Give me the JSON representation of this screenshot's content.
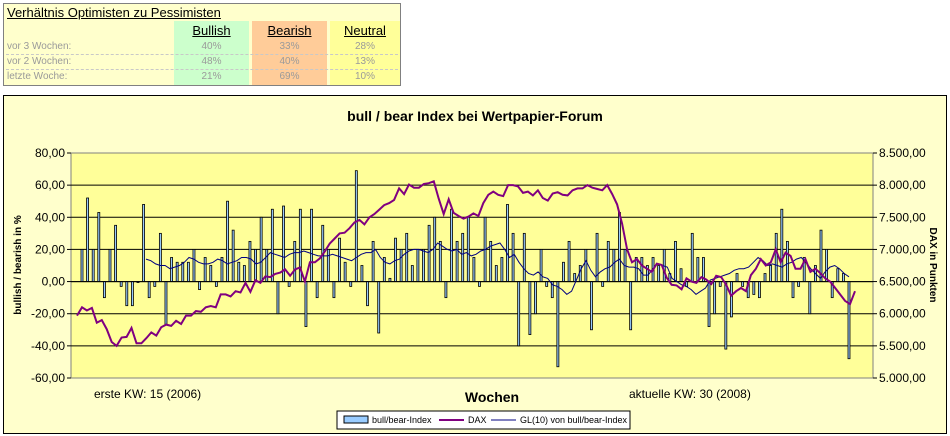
{
  "summary": {
    "title": "Verhältnis Optimisten zu Pessimisten",
    "headers": [
      "Bullish",
      "Bearish",
      "Neutral"
    ],
    "header_colors": [
      "#ccffcc",
      "#ffcc99",
      "#ffff99"
    ],
    "rows": [
      {
        "label": "vor 3 Wochen:",
        "values": [
          "40%",
          "33%",
          "28%"
        ]
      },
      {
        "label": "vor 2 Wochen:",
        "values": [
          "48%",
          "40%",
          "13%"
        ]
      },
      {
        "label": "letzte Woche:",
        "values": [
          "21%",
          "69%",
          "10%"
        ]
      }
    ]
  },
  "chart_data": {
    "type": "bar",
    "title": "bull / bear Index bei Wertpapier-Forum",
    "xlabel": "Wochen",
    "ylabel": "bullish / bearish in %",
    "y2label": "DAX in Punkten",
    "ylim": [
      -60,
      80
    ],
    "y2lim": [
      5000,
      8500
    ],
    "yticks": [
      "80,00",
      "60,00",
      "40,00",
      "20,00",
      "0,00",
      "-20,00",
      "-40,00",
      "-60,00"
    ],
    "y2ticks": [
      "8.500,00",
      "8.000,00",
      "7.500,00",
      "7.000,00",
      "6.500,00",
      "6.000,00",
      "5.500,00",
      "5.000,00"
    ],
    "annotations": {
      "start": "erste KW: 15 (2006)",
      "end": "aktuelle KW: 30 (2008)"
    },
    "plot_bg": "#ffff99",
    "grid": true,
    "legend_position": "bottom",
    "series": [
      {
        "name": "bull/bear-Index",
        "type": "bar",
        "color": "#99ccff",
        "values": [
          20,
          52,
          20,
          43,
          -10,
          20,
          35,
          -3,
          -15,
          -15,
          0,
          48,
          -10,
          -3,
          30,
          -27,
          15,
          12,
          12,
          12,
          20,
          -5,
          15,
          10,
          -3,
          15,
          50,
          32,
          12,
          10,
          25,
          20,
          40,
          20,
          45,
          -20,
          47,
          -3,
          25,
          45,
          -28,
          45,
          -10,
          35,
          20,
          -10,
          27,
          12,
          -3,
          69,
          10,
          -15,
          25,
          -32,
          15,
          2,
          27,
          20,
          30,
          10,
          20,
          20,
          35,
          40,
          25,
          -10,
          45,
          25,
          30,
          40,
          15,
          -3,
          40,
          25,
          10,
          15,
          48,
          30,
          -40,
          30,
          -33,
          -20,
          20,
          -3,
          -10,
          -53,
          12,
          25,
          5,
          10,
          20,
          -30,
          30,
          -3,
          25,
          20,
          43,
          20,
          -30,
          15,
          15,
          10,
          15,
          10,
          20,
          5,
          25,
          8,
          -3,
          30,
          15,
          15,
          -28,
          -20,
          -3,
          -42,
          -22,
          5,
          -3,
          -10,
          -8,
          -10,
          5,
          10,
          30,
          45,
          25,
          -10,
          -3,
          15,
          -20,
          10,
          32,
          20,
          -10,
          8,
          5,
          -48
        ]
      },
      {
        "name": "DAX",
        "type": "line",
        "color": "#800080",
        "values": [
          5970,
          6100,
          6050,
          6090,
          5860,
          5900,
          5760,
          5560,
          5500,
          5630,
          5640,
          5780,
          5540,
          5540,
          5620,
          5710,
          5660,
          5790,
          5830,
          5810,
          5890,
          5840,
          5970,
          5970,
          6040,
          6030,
          6100,
          6120,
          6100,
          6300,
          6300,
          6270,
          6350,
          6330,
          6480,
          6340,
          6520,
          6480,
          6580,
          6570,
          6620,
          6640,
          6690,
          6590,
          6690,
          6720,
          6500,
          6800,
          6800,
          6860,
          6970,
          7090,
          7170,
          7250,
          7260,
          7330,
          7420,
          7460,
          7390,
          7500,
          7550,
          7620,
          7690,
          7720,
          7770,
          7950,
          7860,
          8010,
          7960,
          7960,
          8020,
          8030,
          8060,
          7790,
          7550,
          7780,
          7570,
          7520,
          7480,
          7510,
          7560,
          7520,
          7720,
          7850,
          7900,
          7850,
          7830,
          8000,
          8000,
          7980,
          7880,
          7900,
          7840,
          7920,
          7800,
          7760,
          7870,
          7890,
          7850,
          7840,
          7920,
          7950,
          7950,
          8000,
          7960,
          7940,
          7920,
          8000,
          7860,
          7700,
          7400,
          7000,
          6800,
          6850,
          6750,
          6700,
          6650,
          6780,
          6760,
          6560,
          6450,
          6440,
          6380,
          6550,
          6500,
          6480,
          6570,
          6530,
          6460,
          6590,
          6570,
          6450,
          6280,
          6350,
          6400,
          6350,
          6600,
          6700,
          6850,
          6750,
          6800,
          7000,
          6800,
          6950,
          6900,
          6700,
          6700,
          6850,
          6650,
          6700,
          6630,
          6550,
          6500,
          6400,
          6300,
          6200,
          6150,
          6350
        ]
      },
      {
        "name": "GL(10) von bull/bear-Index",
        "type": "line",
        "color": "#000080",
        "values": [
          14,
          13,
          11,
          10,
          10,
          8,
          9,
          10,
          12,
          15,
          14,
          12,
          11,
          11,
          12,
          14,
          13,
          11,
          12,
          13,
          15,
          15,
          14,
          11,
          12,
          15,
          18,
          17,
          16,
          15,
          17,
          18,
          18,
          19,
          18,
          17,
          16,
          16,
          16,
          17,
          16,
          15,
          14,
          13,
          15,
          17,
          18,
          18,
          20,
          15,
          12,
          11,
          13,
          14,
          17,
          19,
          20,
          20,
          19,
          18,
          20,
          24,
          22,
          20,
          19,
          20,
          17,
          18,
          16,
          17,
          19,
          20,
          22,
          23,
          24,
          20,
          15,
          17,
          12,
          8,
          5,
          4,
          6,
          3,
          2,
          -2,
          -3,
          -5,
          -8,
          -6,
          1,
          8,
          13,
          7,
          3,
          6,
          8,
          9,
          12,
          14,
          10,
          9,
          9,
          8,
          4,
          4,
          8,
          11,
          10,
          9,
          2,
          0,
          -2,
          -3,
          -5,
          -8,
          -6,
          -4,
          1,
          2,
          3,
          4,
          5,
          7,
          8,
          8,
          9,
          12,
          15,
          13,
          10,
          11,
          10,
          9,
          11,
          12,
          14,
          15,
          12,
          8,
          5,
          2,
          6,
          9,
          10,
          8,
          5,
          3
        ]
      }
    ]
  }
}
